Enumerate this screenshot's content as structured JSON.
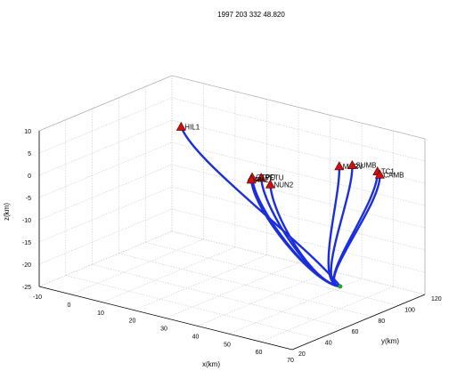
{
  "chart_data": {
    "type": "3d-line",
    "title": "1997  203  332 48.820",
    "xlabel": "x(km)",
    "ylabel": "y(km)",
    "zlabel": "z(km)",
    "xlim": [
      -10,
      70
    ],
    "ylim": [
      20,
      120
    ],
    "zlim": [
      -25,
      10
    ],
    "xticks": [
      "-10",
      "0",
      "10",
      "20",
      "30",
      "40",
      "50",
      "60",
      "70"
    ],
    "yticks": [
      "20",
      "40",
      "60",
      "80",
      "100",
      "120"
    ],
    "zticks": [
      "-25",
      "-20",
      "-15",
      "-10",
      "-5",
      "0",
      "5",
      "10"
    ],
    "grid": true,
    "ray_color": "#1a2ee0",
    "station_color": "#cc1111",
    "source_color": "#22aa22",
    "source": {
      "x": 60,
      "y": 80,
      "z": -20
    },
    "stations": [
      {
        "name": "HIL1",
        "x": -5,
        "y": 115,
        "z": 0
      },
      {
        "name": "MARV",
        "x": 45,
        "y": 115,
        "z": 0
      },
      {
        "name": "SUMB",
        "x": 47,
        "y": 120,
        "z": 0
      },
      {
        "name": "TC1",
        "x": 55,
        "y": 120,
        "z": 0
      },
      {
        "name": "CAMB",
        "x": 57,
        "y": 117,
        "z": 0
      },
      {
        "name": "PETU",
        "x": 35,
        "y": 80,
        "z": 0
      },
      {
        "name": "NUN2",
        "x": 40,
        "y": 75,
        "z": 0
      },
      {
        "name": "GTPD",
        "x": 33,
        "y": 78,
        "z": 0
      },
      {
        "name": "RK2",
        "x": 34,
        "y": 75,
        "z": 0
      }
    ]
  }
}
